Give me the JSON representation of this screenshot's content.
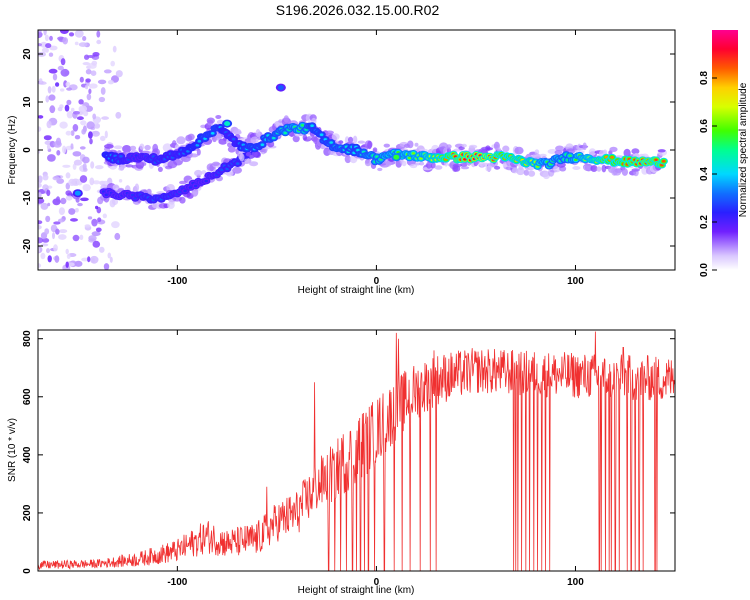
{
  "title": "S196.2026.032.15.00.R02",
  "chart_data": [
    {
      "type": "heatmap",
      "name": "spectrogram",
      "xlabel": "Height of straight line (km)",
      "ylabel": "Frequency (Hz)",
      "xlim": [
        -170,
        150
      ],
      "ylim": [
        -25,
        25
      ],
      "x_ticks": [
        -100,
        0,
        100
      ],
      "y_ticks": [
        -20,
        -10,
        0,
        10,
        20
      ],
      "colorbar": {
        "label": "Normalized spectral amplitude",
        "range": [
          0,
          1
        ],
        "ticks": [
          "0.0",
          "0.2",
          "0.4",
          "0.6",
          "0.8"
        ],
        "tick_values": [
          0,
          0.2,
          0.4,
          0.6,
          0.8
        ]
      },
      "ridge_trace": [
        {
          "x": -136,
          "f": -1.5,
          "a": 0.35
        },
        {
          "x": -128,
          "f": -1.8,
          "a": 0.3
        },
        {
          "x": -120,
          "f": -1.5,
          "a": 0.25
        },
        {
          "x": -110,
          "f": -2.0,
          "a": 0.3
        },
        {
          "x": -100,
          "f": -1.0,
          "a": 0.3
        },
        {
          "x": -92,
          "f": 1.0,
          "a": 0.35
        },
        {
          "x": -85,
          "f": 3.0,
          "a": 0.4
        },
        {
          "x": -80,
          "f": 5.0,
          "a": 0.4
        },
        {
          "x": -75,
          "f": 3.0,
          "a": 0.3
        },
        {
          "x": -70,
          "f": 1.5,
          "a": 0.3
        },
        {
          "x": -65,
          "f": 0.0,
          "a": 0.4
        },
        {
          "x": -58,
          "f": 1.5,
          "a": 0.4
        },
        {
          "x": -50,
          "f": 3.5,
          "a": 0.45
        },
        {
          "x": -44,
          "f": 4.5,
          "a": 0.5
        },
        {
          "x": -38,
          "f": 4.5,
          "a": 0.55
        },
        {
          "x": -32,
          "f": 4.5,
          "a": 0.4
        },
        {
          "x": -25,
          "f": 1.5,
          "a": 0.4
        },
        {
          "x": -18,
          "f": 0.5,
          "a": 0.45
        },
        {
          "x": -10,
          "f": 0.0,
          "a": 0.4
        },
        {
          "x": -4,
          "f": -1.0,
          "a": 0.5
        },
        {
          "x": 0,
          "f": -2.0,
          "a": 0.5
        },
        {
          "x": 5,
          "f": -1.0,
          "a": 0.55
        },
        {
          "x": 15,
          "f": -1.0,
          "a": 0.6
        },
        {
          "x": 25,
          "f": -1.5,
          "a": 0.65
        },
        {
          "x": 40,
          "f": -1.5,
          "a": 0.9
        },
        {
          "x": 55,
          "f": -1.5,
          "a": 0.95
        },
        {
          "x": 65,
          "f": -1.5,
          "a": 0.8
        },
        {
          "x": 75,
          "f": -2.5,
          "a": 0.75
        },
        {
          "x": 85,
          "f": -3.0,
          "a": 0.55
        },
        {
          "x": 95,
          "f": -1.5,
          "a": 0.5
        },
        {
          "x": 105,
          "f": -1.5,
          "a": 0.65
        },
        {
          "x": 115,
          "f": -2.0,
          "a": 0.8
        },
        {
          "x": 125,
          "f": -2.5,
          "a": 0.85
        },
        {
          "x": 135,
          "f": -2.5,
          "a": 0.9
        },
        {
          "x": 145,
          "f": -2.5,
          "a": 0.85
        }
      ],
      "secondary_trace": [
        {
          "x": -137,
          "f": -9.0,
          "a": 0.25
        },
        {
          "x": -125,
          "f": -9.5,
          "a": 0.25
        },
        {
          "x": -115,
          "f": -10.0,
          "a": 0.3
        },
        {
          "x": -105,
          "f": -10.0,
          "a": 0.3
        },
        {
          "x": -95,
          "f": -8.0,
          "a": 0.25
        },
        {
          "x": -85,
          "f": -6.0,
          "a": 0.25
        },
        {
          "x": -75,
          "f": -3.5,
          "a": 0.3
        },
        {
          "x": -68,
          "f": -2.0,
          "a": 0.3
        },
        {
          "x": -60,
          "f": -0.5,
          "a": 0.3
        }
      ],
      "noise_region": {
        "x_range": [
          -170,
          -125
        ],
        "f_range": [
          -25,
          25
        ]
      },
      "isolated_blobs": [
        {
          "x": -48,
          "f": 13.0,
          "a": 0.3
        },
        {
          "x": -150,
          "f": -9.0,
          "a": 0.35
        },
        {
          "x": 10,
          "f": -1.5,
          "a": 0.55
        },
        {
          "x": -75,
          "f": 5.5,
          "a": 0.45
        }
      ]
    },
    {
      "type": "line",
      "name": "snr",
      "xlabel": "Height of straight line (km)",
      "ylabel": "SNR (10 * v/v)",
      "xlim": [
        -170,
        150
      ],
      "ylim": [
        0,
        830
      ],
      "x_ticks": [
        -100,
        0,
        100
      ],
      "y_ticks": [
        0,
        200,
        400,
        600,
        800
      ],
      "color": "#f03030",
      "envelope": [
        {
          "x": -170,
          "base": 20,
          "amp": 15
        },
        {
          "x": -140,
          "base": 25,
          "amp": 15
        },
        {
          "x": -120,
          "base": 40,
          "amp": 25
        },
        {
          "x": -100,
          "base": 70,
          "amp": 40
        },
        {
          "x": -85,
          "base": 120,
          "amp": 60
        },
        {
          "x": -75,
          "base": 95,
          "amp": 50
        },
        {
          "x": -60,
          "base": 110,
          "amp": 60
        },
        {
          "x": -50,
          "base": 170,
          "amp": 70
        },
        {
          "x": -40,
          "base": 200,
          "amp": 80
        },
        {
          "x": -30,
          "base": 290,
          "amp": 90
        },
        {
          "x": -20,
          "base": 350,
          "amp": 110
        },
        {
          "x": -10,
          "base": 420,
          "amp": 120
        },
        {
          "x": 0,
          "base": 480,
          "amp": 120
        },
        {
          "x": 10,
          "base": 560,
          "amp": 110
        },
        {
          "x": 20,
          "base": 620,
          "amp": 100
        },
        {
          "x": 30,
          "base": 660,
          "amp": 90
        },
        {
          "x": 50,
          "base": 690,
          "amp": 80
        },
        {
          "x": 80,
          "base": 680,
          "amp": 80
        },
        {
          "x": 110,
          "base": 670,
          "amp": 80
        },
        {
          "x": 150,
          "base": 660,
          "amp": 80
        }
      ],
      "peaks": [
        {
          "x": -55,
          "y": 290
        },
        {
          "x": -31,
          "y": 650
        },
        {
          "x": 10,
          "y": 820
        },
        {
          "x": 11,
          "y": 800
        },
        {
          "x": 29,
          "y": 760
        },
        {
          "x": 110,
          "y": 825
        },
        {
          "x": 124,
          "y": 770
        }
      ],
      "dropout_x": [
        -24,
        -21,
        -18,
        -15,
        -12,
        -10,
        -8,
        -6,
        -4,
        -1,
        4,
        9,
        13,
        17,
        22,
        27,
        30,
        69,
        70,
        71,
        73,
        75,
        77,
        79,
        81,
        83,
        85,
        87,
        110,
        112,
        113,
        115,
        117,
        118,
        120,
        122,
        124,
        126,
        128,
        130,
        132,
        134,
        140,
        141
      ]
    }
  ]
}
